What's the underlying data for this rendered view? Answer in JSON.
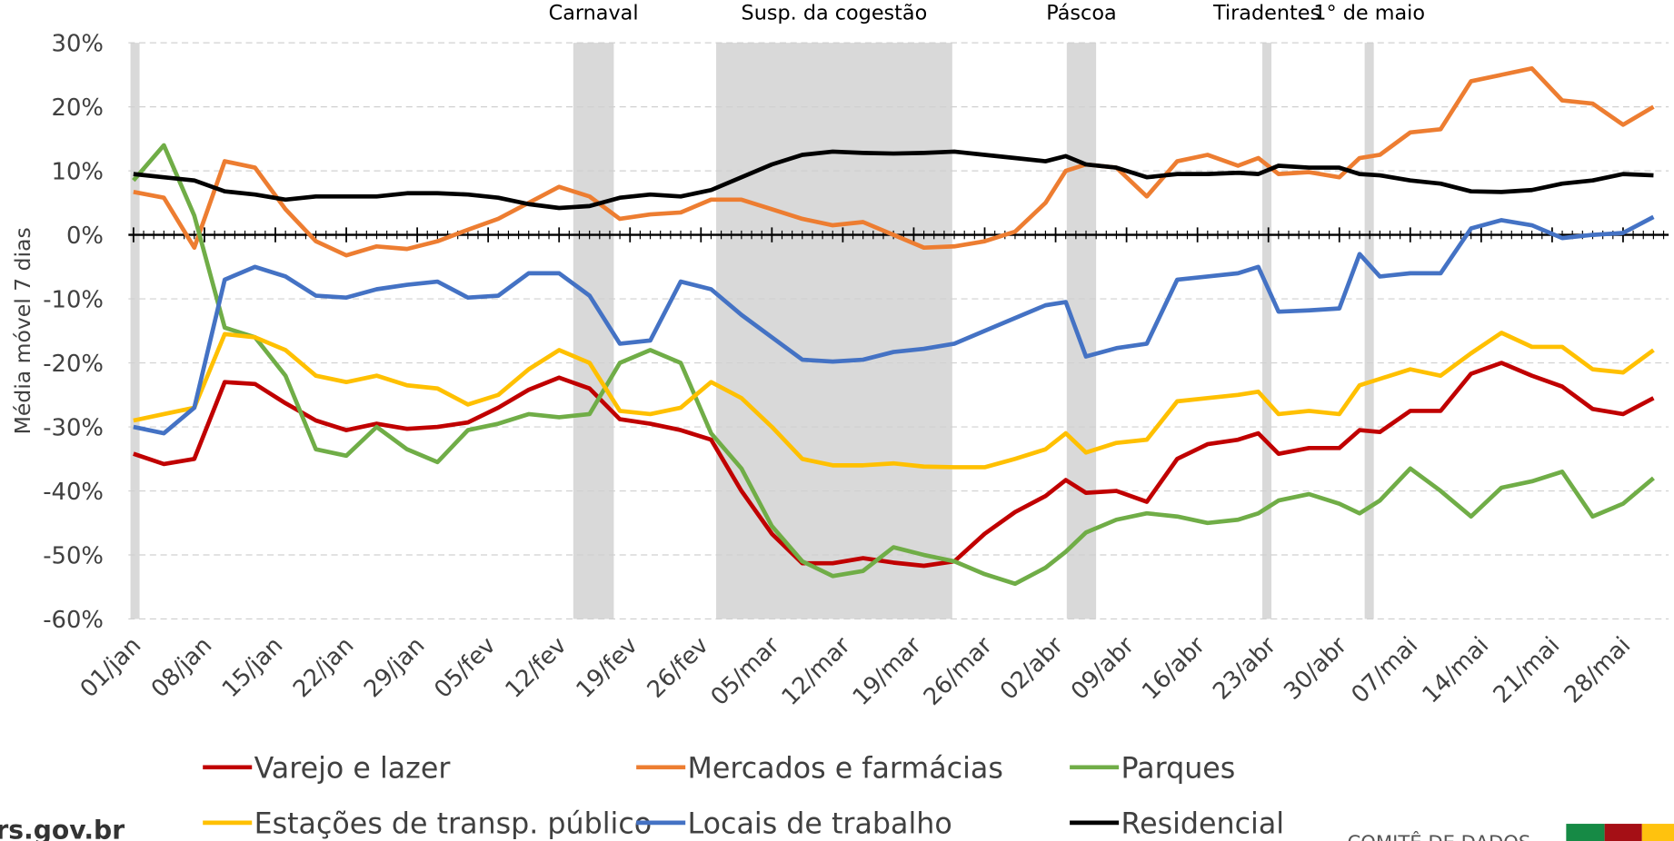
{
  "chart_data": {
    "type": "line",
    "y_label": "Média móvel 7 dias",
    "x": [
      0,
      3,
      6,
      9,
      12,
      15,
      18,
      21,
      24,
      27,
      30,
      33,
      36,
      39,
      42,
      45,
      48,
      51,
      54,
      57,
      60,
      63,
      66,
      69,
      72,
      75,
      78,
      81,
      84,
      87,
      90,
      92,
      94,
      97,
      100,
      103,
      106,
      109,
      111,
      113,
      116,
      119,
      121,
      123,
      126,
      129,
      132,
      135,
      138,
      141,
      144,
      147,
      150
    ],
    "xlim": [
      -0.5,
      151.5
    ],
    "xticks": [
      {
        "value": 0,
        "label": "01/jan"
      },
      {
        "value": 7,
        "label": "08/jan"
      },
      {
        "value": 14,
        "label": "15/jan"
      },
      {
        "value": 21,
        "label": "22/jan"
      },
      {
        "value": 28,
        "label": "29/jan"
      },
      {
        "value": 35,
        "label": "05/fev"
      },
      {
        "value": 42,
        "label": "12/fev"
      },
      {
        "value": 49,
        "label": "19/fev"
      },
      {
        "value": 56,
        "label": "26/fev"
      },
      {
        "value": 63,
        "label": "05/mar"
      },
      {
        "value": 70,
        "label": "12/mar"
      },
      {
        "value": 77,
        "label": "19/mar"
      },
      {
        "value": 84,
        "label": "26/mar"
      },
      {
        "value": 91,
        "label": "02/abr"
      },
      {
        "value": 98,
        "label": "09/abr"
      },
      {
        "value": 105,
        "label": "16/abr"
      },
      {
        "value": 112,
        "label": "23/abr"
      },
      {
        "value": 119,
        "label": "30/abr"
      },
      {
        "value": 126,
        "label": "07/mai"
      },
      {
        "value": 133,
        "label": "14/mai"
      },
      {
        "value": 140,
        "label": "21/mai"
      },
      {
        "value": 147,
        "label": "28/mai"
      }
    ],
    "ylim": [
      -60,
      30
    ],
    "yticks": [
      {
        "value": -60,
        "label": "-60%"
      },
      {
        "value": -50,
        "label": "-50%"
      },
      {
        "value": -40,
        "label": "-40%"
      },
      {
        "value": -30,
        "label": "-30%"
      },
      {
        "value": -20,
        "label": "-20%"
      },
      {
        "value": -10,
        "label": "-10%"
      },
      {
        "value": 0,
        "label": "0%"
      },
      {
        "value": 10,
        "label": "10%"
      },
      {
        "value": 20,
        "label": "20%"
      },
      {
        "value": 30,
        "label": "30%"
      }
    ],
    "grid": true,
    "periods": [
      {
        "label": null,
        "start": -0.3,
        "end": 0.6
      },
      {
        "label": "Carnaval",
        "start": 43.4,
        "end": 47.4
      },
      {
        "label": "Susp. da cogestão",
        "start": 57.5,
        "end": 80.8
      },
      {
        "label": "Páscoa",
        "start": 92.1,
        "end": 95
      },
      {
        "label": "Tiradentes",
        "start": 111.4,
        "end": 112.3
      },
      {
        "label": "1° de maio",
        "start": 121.5,
        "end": 122.4
      }
    ],
    "series": [
      {
        "name": "Varejo e lazer",
        "color": "#c00000",
        "values": [
          -34.2,
          -35.8,
          -35,
          -23,
          -23.3,
          -26.3,
          -29,
          -30.5,
          -29.5,
          -30.3,
          -30,
          -29.3,
          -27,
          -24.2,
          -22.3,
          -24,
          -28.8,
          -29.5,
          -30.5,
          -32,
          -40,
          -46.7,
          -51.3,
          -51.3,
          -50.5,
          -51.2,
          -51.7,
          -51,
          -46.7,
          -43.3,
          -40.8,
          -38.3,
          -40.3,
          -40,
          -41.7,
          -35,
          -32.7,
          -32,
          -31,
          -34.2,
          -33.3,
          -33.3,
          -30.5,
          -30.8,
          -27.5,
          -27.5,
          -21.7,
          -20,
          -22,
          -23.7,
          -27.2,
          -28,
          -25.5
        ]
      },
      {
        "name": "Mercados e farmácias",
        "color": "#ed7d31",
        "values": [
          6.7,
          5.8,
          -2,
          11.5,
          10.5,
          4,
          -1,
          -3.2,
          -1.8,
          -2.2,
          -1,
          0.8,
          2.5,
          5,
          7.5,
          6,
          2.5,
          3.2,
          3.5,
          5.5,
          5.5,
          4,
          2.5,
          1.5,
          2,
          0,
          -2,
          -1.8,
          -1,
          0.5,
          5,
          10,
          11,
          10.5,
          6,
          11.5,
          12.5,
          10.8,
          12,
          9.5,
          9.8,
          9,
          12,
          12.5,
          16,
          16.5,
          24,
          25,
          26,
          21,
          20.5,
          17.2,
          20
        ]
      },
      {
        "name": "Parques",
        "color": "#70ad47",
        "values": [
          8.5,
          14,
          3,
          -14.5,
          -16,
          -22,
          -33.5,
          -34.5,
          -30,
          -33.5,
          -35.5,
          -30.5,
          -29.5,
          -28,
          -28.5,
          -28,
          -20,
          -18,
          -20,
          -31,
          -36.5,
          -45.5,
          -51,
          -53.3,
          -52.5,
          -48.8,
          -50,
          -51,
          -53,
          -54.5,
          -52,
          -49.5,
          -46.5,
          -44.5,
          -43.5,
          -44,
          -45,
          -44.5,
          -43.5,
          -41.5,
          -40.5,
          -42,
          -43.5,
          -41.5,
          -36.5,
          -40,
          -44,
          -39.5,
          -38.5,
          -37,
          -44,
          -42,
          -38
        ]
      },
      {
        "name": "Estações de transp. público",
        "color": "#ffc000",
        "values": [
          -29,
          -28,
          -27,
          -15.5,
          -16,
          -18,
          -22,
          -23,
          -22,
          -23.5,
          -24,
          -26.5,
          -25,
          -21,
          -18,
          -20,
          -27.5,
          -28,
          -27,
          -23,
          -25.5,
          -30,
          -35,
          -36,
          -36,
          -35.7,
          -36.2,
          -36.3,
          -36.3,
          -35,
          -33.5,
          -31,
          -34,
          -32.5,
          -32,
          -26,
          -25.5,
          -25,
          -24.5,
          -28,
          -27.5,
          -28,
          -23.5,
          -22.5,
          -21,
          -22,
          -18.5,
          -15.3,
          -17.5,
          -17.5,
          -21,
          -21.5,
          -18
        ]
      },
      {
        "name": "Locais de trabalho",
        "color": "#4472c4",
        "values": [
          -30,
          -31,
          -27,
          -7,
          -5,
          -6.5,
          -9.5,
          -9.8,
          -8.5,
          -7.8,
          -7.3,
          -9.8,
          -9.5,
          -6,
          -6,
          -9.5,
          -17,
          -16.5,
          -7.3,
          -8.5,
          -12.5,
          -16,
          -19.5,
          -19.8,
          -19.5,
          -18.3,
          -17.8,
          -17,
          -15,
          -13,
          -11,
          -10.5,
          -19,
          -17.7,
          -17,
          -7,
          -6.5,
          -6,
          -5,
          -12,
          -11.8,
          -11.5,
          -3,
          -6.5,
          -6,
          -6,
          1,
          2.3,
          1.5,
          -0.5,
          0,
          0.3,
          2.8
        ]
      },
      {
        "name": "Residencial",
        "color": "#000000",
        "values": [
          9.5,
          9,
          8.5,
          6.8,
          6.3,
          5.5,
          6,
          6,
          6,
          6.5,
          6.5,
          6.3,
          5.8,
          4.8,
          4.2,
          4.5,
          5.8,
          6.3,
          6,
          7,
          9,
          11,
          12.5,
          13,
          12.8,
          12.7,
          12.8,
          13,
          12.5,
          12,
          11.5,
          12.3,
          11,
          10.5,
          9,
          9.5,
          9.5,
          9.7,
          9.5,
          10.8,
          10.5,
          10.5,
          9.5,
          9.3,
          8.5,
          8,
          6.8,
          6.7,
          7,
          8,
          8.5,
          9.5,
          9.3
        ]
      }
    ]
  },
  "footer": {
    "site": "rs.gov.br",
    "org": "COMITÊ DE DADOS"
  }
}
